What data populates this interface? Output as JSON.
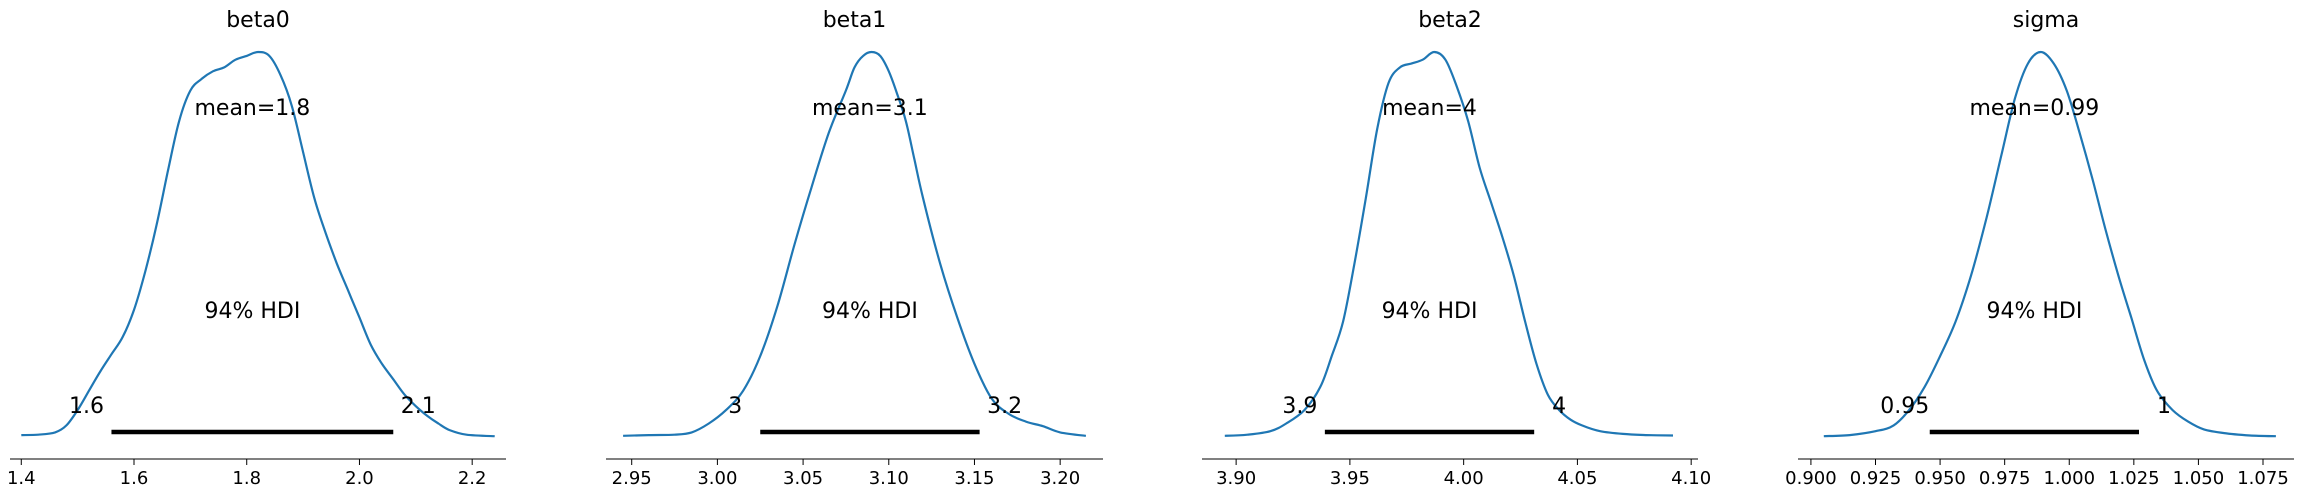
{
  "figure": {
    "kde_color": "#1f77b4",
    "hdi_color": "#000000"
  },
  "chart_data": [
    {
      "type": "area",
      "title": "beta0",
      "mean_label": "mean=1.8",
      "hdi_label": "94% HDI",
      "hdi": {
        "low": 1.56,
        "high": 2.06,
        "low_label": "1.6",
        "high_label": "2.1"
      },
      "xlim": [
        1.38,
        2.26
      ],
      "xticks": [
        1.4,
        1.6,
        1.8,
        2.0,
        2.2
      ],
      "xtick_labels": [
        "1.4",
        "1.6",
        "1.8",
        "2.0",
        "2.2"
      ],
      "density": {
        "x": [
          1.4,
          1.43,
          1.46,
          1.48,
          1.5,
          1.52,
          1.54,
          1.56,
          1.58,
          1.6,
          1.62,
          1.64,
          1.66,
          1.68,
          1.7,
          1.72,
          1.74,
          1.76,
          1.78,
          1.8,
          1.82,
          1.84,
          1.86,
          1.88,
          1.9,
          1.92,
          1.94,
          1.96,
          1.98,
          2.0,
          2.02,
          2.04,
          2.06,
          2.08,
          2.1,
          2.12,
          2.14,
          2.16,
          2.19,
          2.24
        ],
        "y": [
          0.005,
          0.006,
          0.012,
          0.03,
          0.07,
          0.12,
          0.17,
          0.215,
          0.26,
          0.33,
          0.43,
          0.55,
          0.69,
          0.82,
          0.9,
          0.93,
          0.95,
          0.96,
          0.98,
          0.99,
          1.0,
          0.99,
          0.94,
          0.86,
          0.74,
          0.62,
          0.53,
          0.45,
          0.38,
          0.31,
          0.24,
          0.19,
          0.15,
          0.11,
          0.08,
          0.055,
          0.035,
          0.018,
          0.006,
          0.002
        ]
      }
    },
    {
      "type": "area",
      "title": "beta1",
      "mean_label": "mean=3.1",
      "hdi_label": "94% HDI",
      "hdi": {
        "low": 3.025,
        "high": 3.153,
        "low_label": "3",
        "high_label": "3.2"
      },
      "xlim": [
        2.935,
        3.225
      ],
      "xticks": [
        2.95,
        3.0,
        3.05,
        3.1,
        3.15,
        3.2
      ],
      "xtick_labels": [
        "2.95",
        "3.00",
        "3.05",
        "3.10",
        "3.15",
        "3.20"
      ],
      "density": {
        "x": [
          2.945,
          2.96,
          2.975,
          2.985,
          2.995,
          3.005,
          3.015,
          3.025,
          3.035,
          3.045,
          3.055,
          3.065,
          3.075,
          3.08,
          3.085,
          3.09,
          3.095,
          3.1,
          3.105,
          3.11,
          3.115,
          3.12,
          3.13,
          3.14,
          3.15,
          3.16,
          3.17,
          3.18,
          3.19,
          3.2,
          3.215
        ],
        "y": [
          0.003,
          0.005,
          0.006,
          0.012,
          0.035,
          0.07,
          0.12,
          0.21,
          0.34,
          0.5,
          0.65,
          0.79,
          0.9,
          0.96,
          0.99,
          1.0,
          0.99,
          0.95,
          0.89,
          0.82,
          0.72,
          0.62,
          0.45,
          0.31,
          0.19,
          0.1,
          0.06,
          0.04,
          0.028,
          0.012,
          0.003
        ]
      }
    },
    {
      "type": "area",
      "title": "beta2",
      "mean_label": "mean=4",
      "hdi_label": "94% HDI",
      "hdi": {
        "low": 3.939,
        "high": 4.031,
        "low_label": "3.9",
        "high_label": "4"
      },
      "xlim": [
        3.885,
        4.103
      ],
      "xticks": [
        3.9,
        3.95,
        4.0,
        4.05,
        4.1
      ],
      "xtick_labels": [
        "3.90",
        "3.95",
        "4.00",
        "4.05",
        "4.10"
      ],
      "density": {
        "x": [
          3.895,
          3.905,
          3.915,
          3.922,
          3.93,
          3.937,
          3.942,
          3.947,
          3.952,
          3.957,
          3.962,
          3.967,
          3.972,
          3.977,
          3.982,
          3.987,
          3.992,
          3.997,
          4.002,
          4.007,
          4.012,
          4.017,
          4.022,
          4.027,
          4.032,
          4.037,
          4.042,
          4.047,
          4.052,
          4.06,
          4.07,
          4.08,
          4.092
        ],
        "y": [
          0.003,
          0.006,
          0.015,
          0.035,
          0.07,
          0.13,
          0.21,
          0.3,
          0.45,
          0.62,
          0.8,
          0.92,
          0.96,
          0.97,
          0.98,
          1.0,
          0.98,
          0.91,
          0.82,
          0.7,
          0.61,
          0.52,
          0.42,
          0.3,
          0.19,
          0.11,
          0.07,
          0.045,
          0.03,
          0.015,
          0.008,
          0.005,
          0.004
        ]
      }
    },
    {
      "type": "area",
      "title": "sigma",
      "mean_label": "mean=0.99",
      "hdi_label": "94% HDI",
      "hdi": {
        "low": 0.946,
        "high": 1.027,
        "low_label": "0.95",
        "high_label": "1"
      },
      "xlim": [
        0.895,
        1.087
      ],
      "xticks": [
        0.9,
        0.925,
        0.95,
        0.975,
        1.0,
        1.025,
        1.05,
        1.075
      ],
      "xtick_labels": [
        "0.900",
        "0.925",
        "0.950",
        "0.975",
        "1.000",
        "1.025",
        "1.050",
        "1.075"
      ],
      "density": {
        "x": [
          0.905,
          0.915,
          0.925,
          0.932,
          0.938,
          0.944,
          0.95,
          0.956,
          0.962,
          0.968,
          0.974,
          0.979,
          0.984,
          0.989,
          0.994,
          0.999,
          1.004,
          1.009,
          1.014,
          1.019,
          1.024,
          1.029,
          1.034,
          1.04,
          1.046,
          1.052,
          1.06,
          1.07,
          1.08
        ],
        "y": [
          0.002,
          0.005,
          0.015,
          0.03,
          0.07,
          0.13,
          0.21,
          0.3,
          0.42,
          0.57,
          0.74,
          0.88,
          0.97,
          1.0,
          0.97,
          0.9,
          0.79,
          0.67,
          0.54,
          0.42,
          0.31,
          0.2,
          0.12,
          0.07,
          0.04,
          0.02,
          0.01,
          0.004,
          0.002
        ]
      }
    }
  ]
}
